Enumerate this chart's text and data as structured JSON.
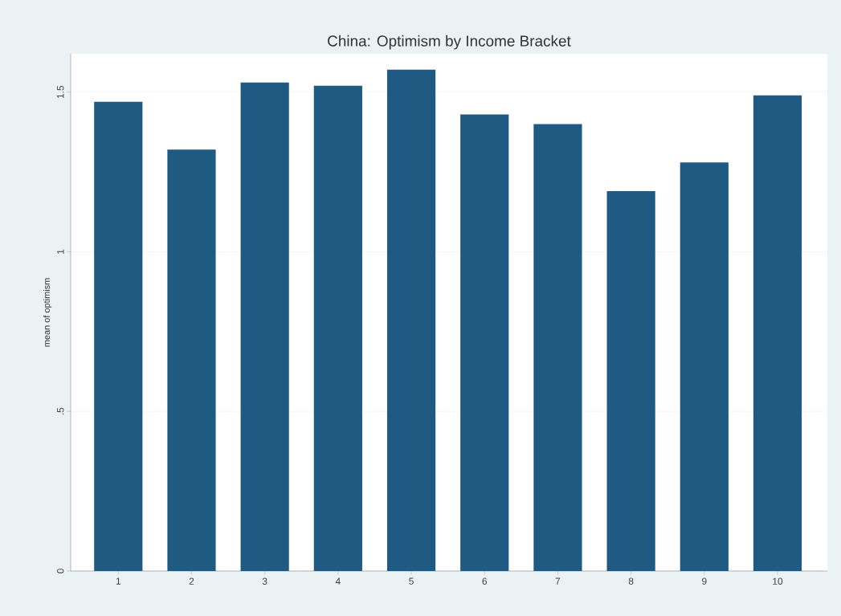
{
  "chart_data": {
    "type": "bar",
    "title": "China: Optimism by Income Bracket",
    "ylabel": "mean of optimism",
    "categories": [
      "1",
      "2",
      "3",
      "4",
      "5",
      "6",
      "7",
      "8",
      "9",
      "10"
    ],
    "values": [
      1.47,
      1.32,
      1.53,
      1.52,
      1.57,
      1.43,
      1.4,
      1.19,
      1.28,
      1.49
    ],
    "color": "#1f5a82",
    "ylim": [
      0,
      1.62
    ],
    "yticks": [
      0,
      {
        "value": 0.5,
        "label": ".5"
      },
      1,
      1.5
    ],
    "grid": "y"
  }
}
